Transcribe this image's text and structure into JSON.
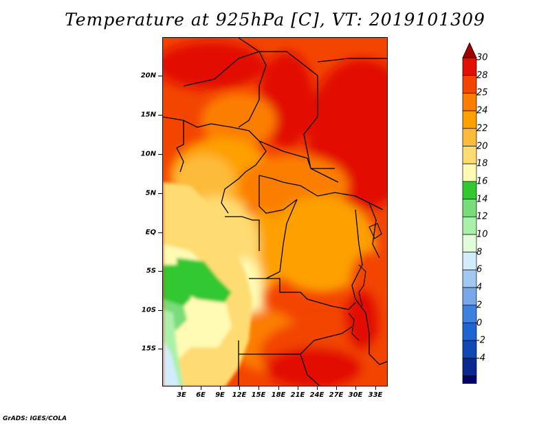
{
  "title": "Temperature at 925hPa [C], VT: 2019101309",
  "footer": "GrADS: IGES/COLA",
  "map": {
    "lat_labels": [
      "20N",
      "15N",
      "10N",
      "5N",
      "EQ",
      "5S",
      "10S",
      "15S"
    ],
    "lon_labels": [
      "3E",
      "6E",
      "9E",
      "12E",
      "15E",
      "18E",
      "21E",
      "24E",
      "27E",
      "30E",
      "33E"
    ]
  },
  "colorbar": {
    "labels": [
      "30",
      "28",
      "25",
      "24",
      "22",
      "20",
      "18",
      "16",
      "14",
      "12",
      "10",
      "8",
      "6",
      "4",
      "2",
      "0",
      "-2",
      "-4"
    ],
    "colors": [
      "#a00000",
      "#e21000",
      "#f34400",
      "#fc7e00",
      "#fda000",
      "#fdbb3b",
      "#fedc72",
      "#fffab4",
      "#32c832",
      "#78dc78",
      "#aaf0aa",
      "#e0ffd8",
      "#d2ecff",
      "#a0c8f0",
      "#78a8e8",
      "#3c82dc",
      "#1e64d2",
      "#1048b4",
      "#0a2890",
      "#000070",
      "#dcdcff"
    ]
  }
}
